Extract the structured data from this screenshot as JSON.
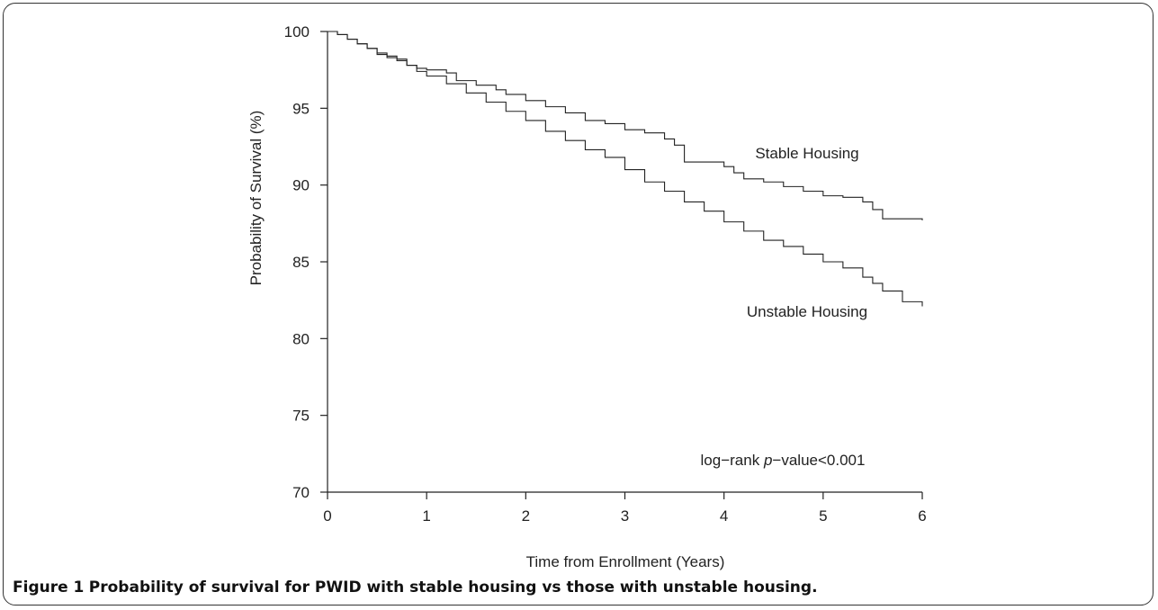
{
  "caption": {
    "label": "Figure 1",
    "text": "Probability of survival for PWID with stable housing vs those with unstable housing."
  },
  "chart_data": {
    "type": "line",
    "step": true,
    "xlabel": "Time from Enrollment (Years)",
    "ylabel": "Probability of Survival (%)",
    "xlim": [
      0,
      6
    ],
    "ylim": [
      70,
      100
    ],
    "xticks": [
      0,
      1,
      2,
      3,
      4,
      5,
      6
    ],
    "yticks": [
      70,
      75,
      80,
      85,
      90,
      95,
      100
    ],
    "grid": false,
    "line_color": "#222222",
    "annotation": {
      "prefix": "log−rank ",
      "italic": "p",
      "suffix": "−value<0.001"
    },
    "series": [
      {
        "name": "Stable Housing",
        "x": [
          0,
          0.1,
          0.2,
          0.3,
          0.4,
          0.5,
          0.6,
          0.7,
          0.8,
          0.9,
          1.0,
          1.2,
          1.3,
          1.5,
          1.7,
          1.8,
          2.0,
          2.2,
          2.4,
          2.6,
          2.8,
          3.0,
          3.2,
          3.4,
          3.5,
          3.6,
          4.0,
          4.1,
          4.2,
          4.4,
          4.6,
          4.8,
          5.0,
          5.2,
          5.4,
          5.5,
          5.6,
          6.0
        ],
        "y": [
          100,
          99.8,
          99.5,
          99.2,
          98.9,
          98.5,
          98.4,
          98.2,
          97.8,
          97.6,
          97.5,
          97.3,
          96.8,
          96.5,
          96.2,
          95.9,
          95.5,
          95.1,
          94.7,
          94.2,
          94.0,
          93.6,
          93.4,
          93.0,
          92.6,
          91.5,
          91.2,
          90.8,
          90.4,
          90.2,
          89.9,
          89.6,
          89.3,
          89.2,
          88.9,
          88.4,
          87.8,
          87.7
        ]
      },
      {
        "name": "Unstable Housing",
        "x": [
          0,
          0.1,
          0.2,
          0.3,
          0.4,
          0.5,
          0.6,
          0.7,
          0.8,
          0.9,
          1.0,
          1.2,
          1.4,
          1.6,
          1.8,
          2.0,
          2.2,
          2.4,
          2.6,
          2.8,
          3.0,
          3.2,
          3.4,
          3.6,
          3.8,
          4.0,
          4.2,
          4.4,
          4.6,
          4.8,
          5.0,
          5.2,
          5.4,
          5.5,
          5.6,
          5.8,
          6.0
        ],
        "y": [
          100,
          99.8,
          99.5,
          99.2,
          98.9,
          98.6,
          98.3,
          98.1,
          97.8,
          97.4,
          97.1,
          96.6,
          96.0,
          95.4,
          94.8,
          94.2,
          93.5,
          92.9,
          92.3,
          91.8,
          91.0,
          90.2,
          89.6,
          88.9,
          88.3,
          87.6,
          87.0,
          86.4,
          86.0,
          85.5,
          85.0,
          84.6,
          84.0,
          83.6,
          83.1,
          82.4,
          82.1
        ]
      }
    ]
  }
}
